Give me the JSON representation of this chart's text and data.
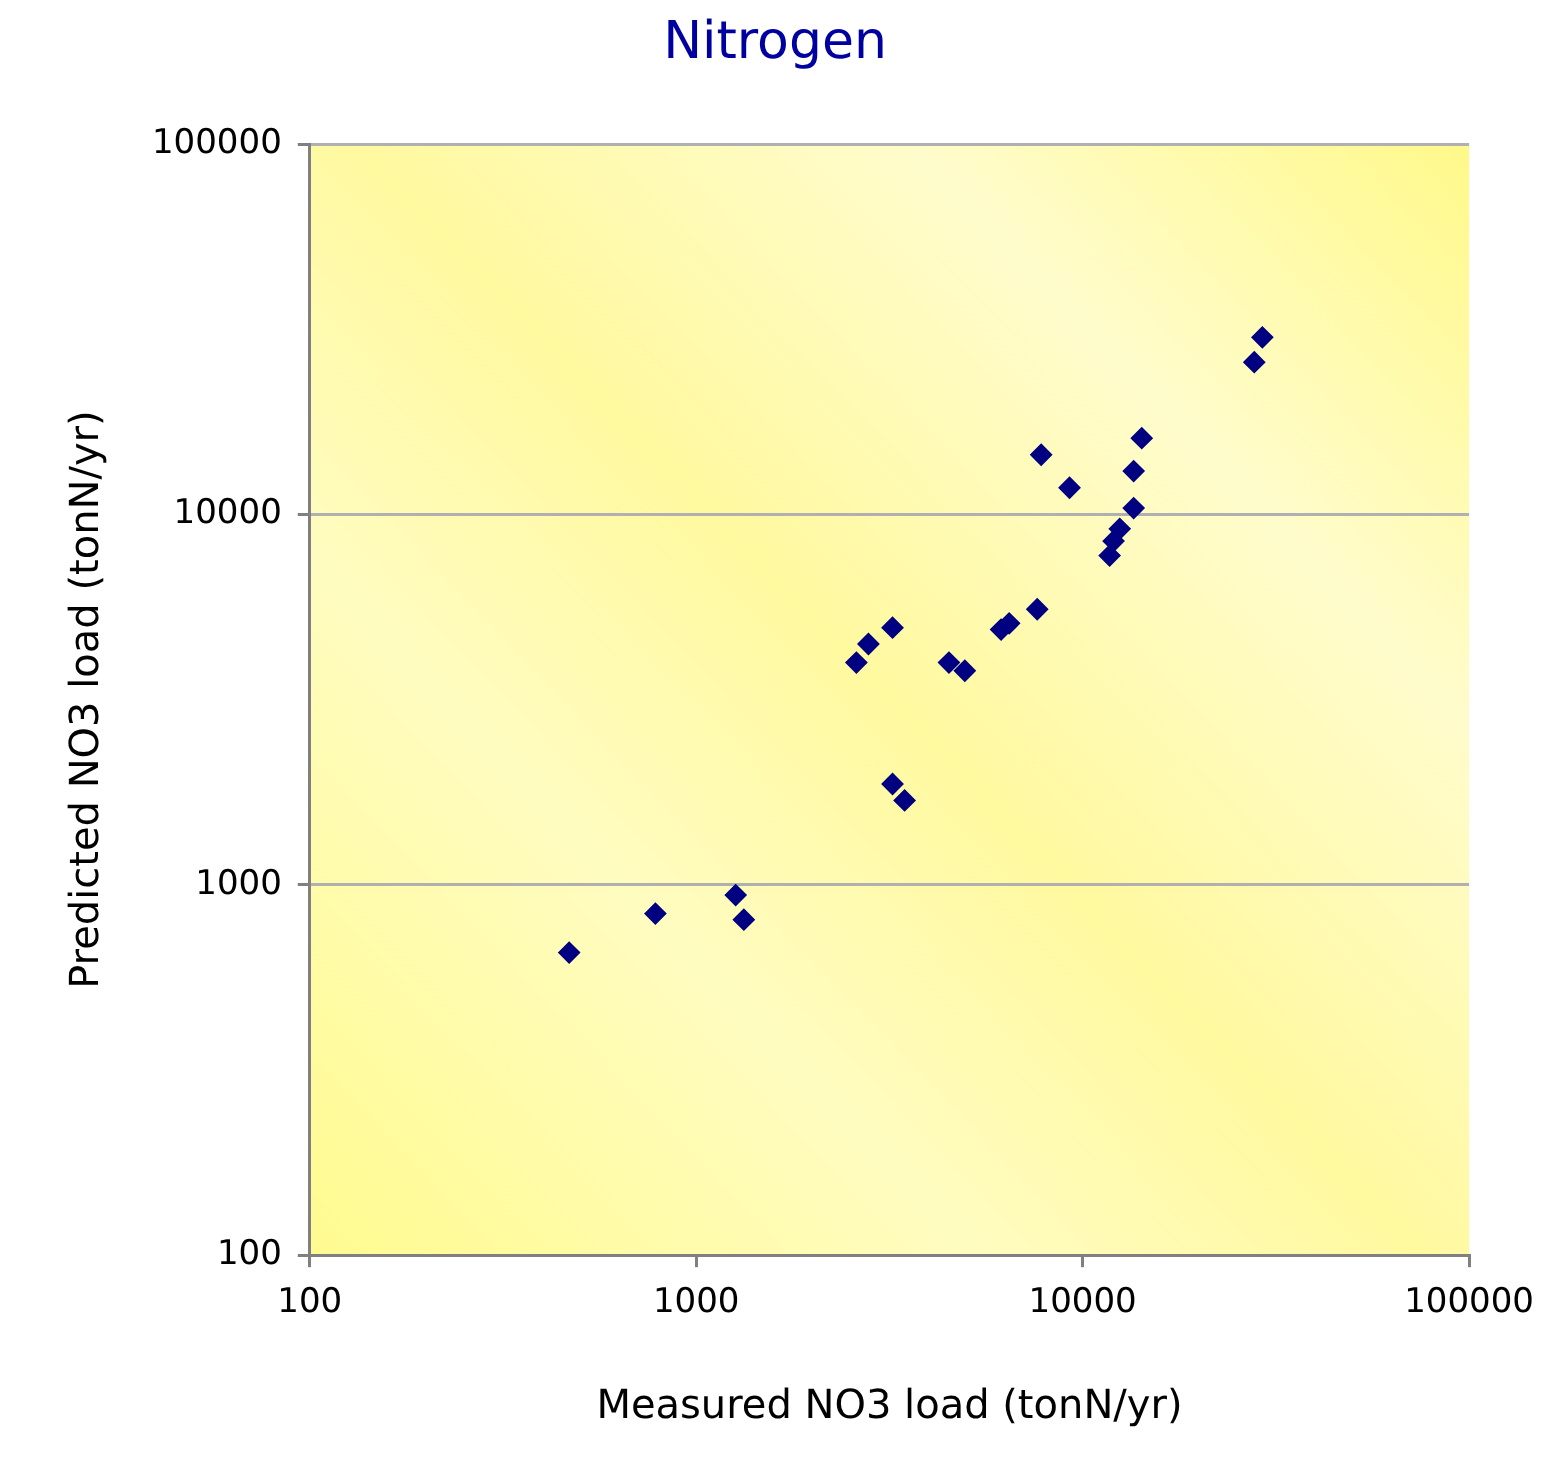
{
  "chart_data": {
    "type": "scatter",
    "title": "Nitrogen",
    "xlabel": "Measured NO3 load (tonN/yr)",
    "ylabel": "Predicted NO3 load (tonN/yr)",
    "x": [
      469,
      784,
      1265,
      1328,
      2597,
      2790,
      3221,
      3221,
      3461,
      4508,
      4955,
      6150,
      6452,
      7628,
      7810,
      9247,
      11740,
      12020,
      12470,
      13550,
      13550,
      14220,
      27800,
      29170
    ],
    "series": [
      {
        "color": "#000080",
        "values": [
          656,
          836,
          938,
          805,
          3981,
          4467,
          4946,
          1871,
          1690,
          3981,
          3784,
          4887,
          5080,
          5546,
          14490,
          11800,
          7740,
          8470,
          9140,
          10400,
          13090,
          16060,
          25760,
          30060
        ]
      }
    ],
    "log": "xy",
    "xlim": [
      100,
      100000
    ],
    "ylim": [
      100,
      100000
    ],
    "xticks": [
      100,
      1000,
      10000,
      100000
    ],
    "yticks": [
      100,
      1000,
      10000,
      100000
    ],
    "grid": "y",
    "legend": false,
    "marker": "diamond"
  }
}
